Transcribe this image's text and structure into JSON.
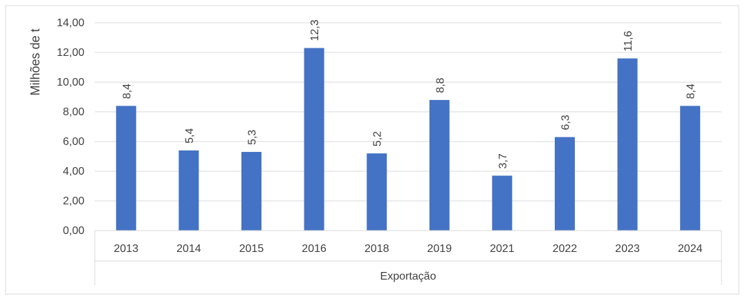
{
  "chart_data": {
    "type": "bar",
    "categories": [
      "2013",
      "2014",
      "2015",
      "2016",
      "2018",
      "2019",
      "2021",
      "2022",
      "2023",
      "2024"
    ],
    "series": [
      {
        "values": [
          8.4,
          5.4,
          5.3,
          12.3,
          5.2,
          8.8,
          3.7,
          6.3,
          11.6,
          8.4
        ],
        "data_labels": [
          "8,4",
          "5,4",
          "5,3",
          "12,3",
          "5,2",
          "8,8",
          "3,7",
          "6,3",
          "11,6",
          "8,4"
        ],
        "color": "#4472C4"
      }
    ],
    "ylabel": "Milhões de t",
    "xlabel": "",
    "group_label": "Exportação",
    "ylim": [
      0,
      14
    ],
    "yticks": [
      0,
      2,
      4,
      6,
      8,
      10,
      12,
      14
    ],
    "ytick_labels": [
      "0,00",
      "2,00",
      "4,00",
      "6,00",
      "8,00",
      "10,00",
      "12,00",
      "14,00"
    ],
    "grid": true,
    "legend": "none",
    "colors": {
      "bar": "#4472C4",
      "grid": "#d9d9d9",
      "text": "#404040",
      "border": "#d9d9d9"
    }
  }
}
